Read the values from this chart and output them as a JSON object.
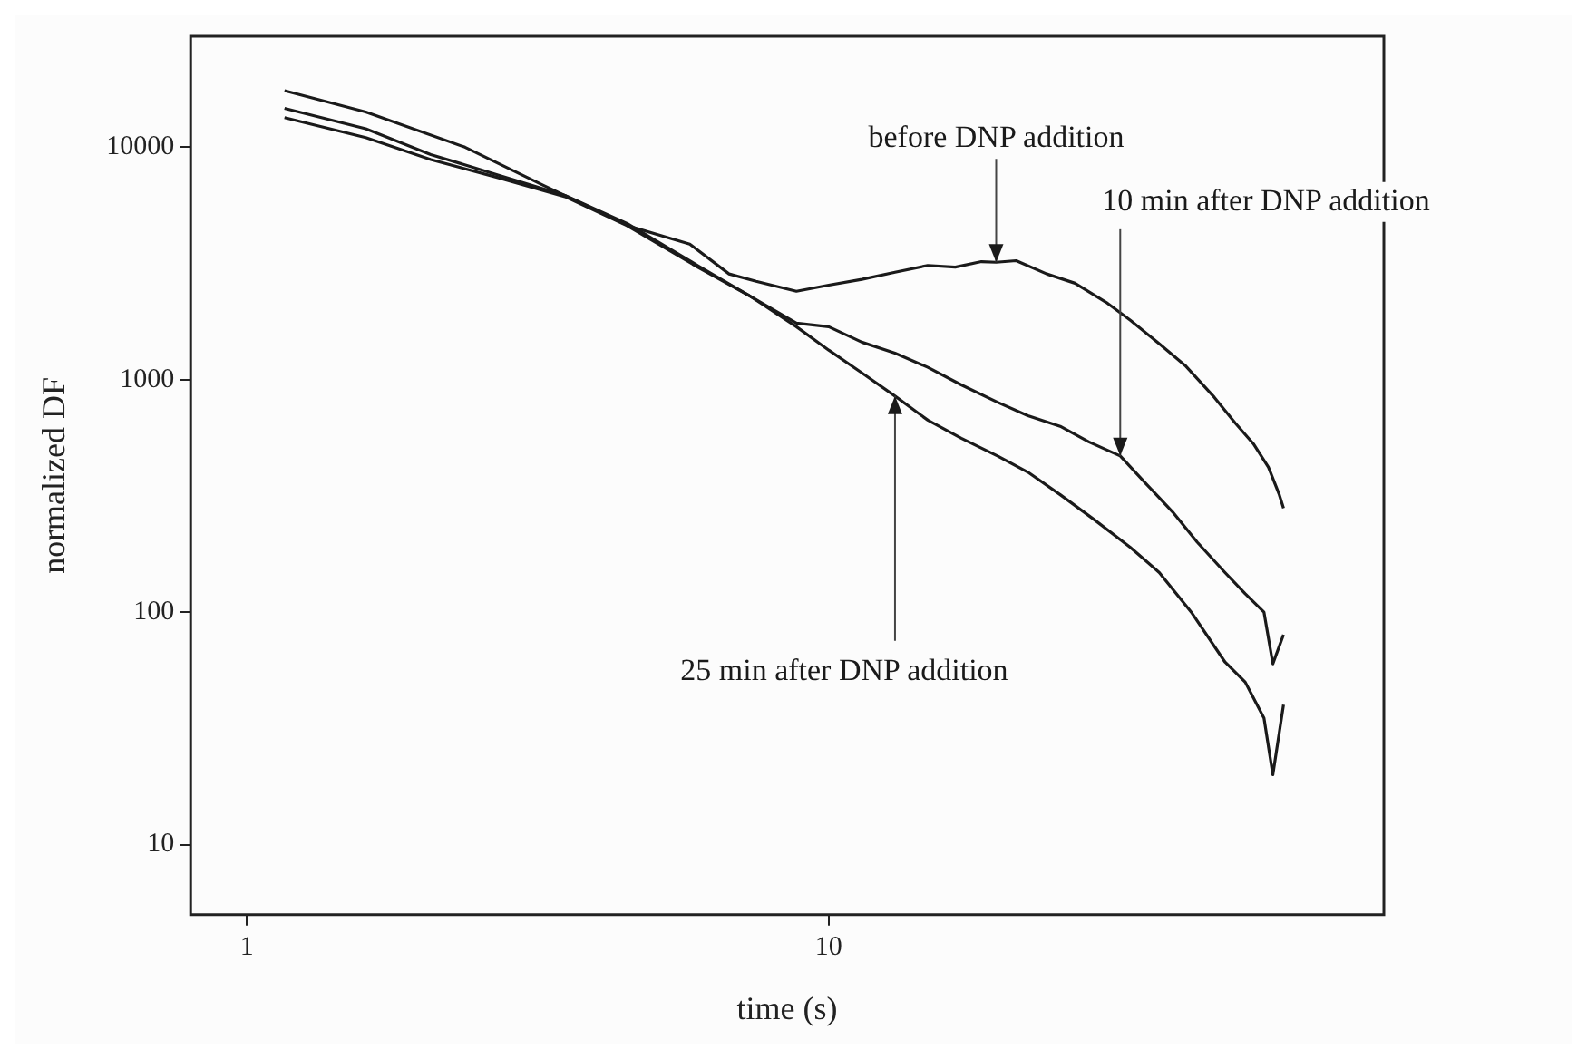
{
  "chart_data": {
    "type": "line",
    "xlabel": "time (s)",
    "ylabel": "normalized DF",
    "log": "xy",
    "grid": false,
    "legend": false,
    "marker": "none",
    "line_style": "solid",
    "xlim": [
      0.8,
      90
    ],
    "xticks": [
      1,
      10
    ],
    "ylim": [
      5,
      30000
    ],
    "yticks": [
      10,
      100,
      1000,
      10000
    ],
    "series": [
      {
        "color": "#1a1a1a",
        "x": [
          1.16,
          1.6,
          2.37,
          3.25,
          4.56,
          5.77,
          6.74,
          7.5,
          8.8,
          10,
          11.4,
          13,
          14.8,
          16.5,
          18.3,
          19.4,
          21,
          23.7,
          26.5,
          30,
          33,
          37.1,
          41,
          46,
          50,
          53.7,
          57,
          59.5,
          60.5
        ],
        "values": [
          17500,
          14170,
          10000,
          6810,
          4560,
          3830,
          2850,
          2650,
          2400,
          2550,
          2700,
          2900,
          3100,
          3050,
          3220,
          3200,
          3250,
          2850,
          2600,
          2150,
          1800,
          1420,
          1150,
          840,
          650,
          530,
          420,
          320,
          280
        ]
      },
      {
        "color": "#1a1a1a",
        "x": [
          1.16,
          1.6,
          2.07,
          2.7,
          3.52,
          4.5,
          5.95,
          7.3,
          8.8,
          10,
          11.4,
          13,
          14.8,
          16.9,
          19.5,
          22,
          25,
          28,
          31.7,
          35,
          39,
          43,
          48,
          52,
          56,
          58,
          60.5
        ],
        "values": [
          14700,
          12000,
          9300,
          7600,
          6200,
          4700,
          3100,
          2300,
          1750,
          1690,
          1450,
          1300,
          1130,
          950,
          800,
          700,
          630,
          540,
          470,
          360,
          270,
          200,
          148,
          120,
          100,
          60,
          80
        ]
      },
      {
        "color": "#1a1a1a",
        "x": [
          1.16,
          1.6,
          2.07,
          2.7,
          3.52,
          4.5,
          5.95,
          7.3,
          8.8,
          10,
          11.4,
          13,
          14.8,
          16.9,
          19.5,
          22,
          25,
          28.6,
          33,
          37,
          42,
          48,
          52,
          56,
          58,
          60.5
        ],
        "values": [
          13400,
          11000,
          8850,
          7400,
          6130,
          4600,
          3050,
          2300,
          1690,
          1340,
          1070,
          850,
          670,
          560,
          470,
          400,
          320,
          250,
          190,
          148,
          100,
          61,
          50,
          35,
          20,
          40
        ]
      }
    ],
    "annotations": [
      {
        "text": "before DNP addition",
        "x": 19.4,
        "y": 3200
      },
      {
        "text": "10 min after DNP addition",
        "x": 31.7,
        "y": 470
      },
      {
        "text": "25 min after DNP addition",
        "x": 13,
        "y": 850
      }
    ]
  }
}
